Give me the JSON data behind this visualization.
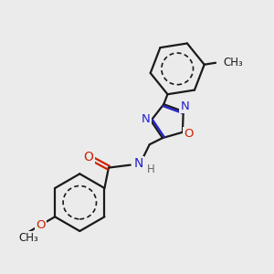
{
  "bg_color": "#ebebeb",
  "bond_color": "#1a1a1a",
  "N_color": "#2222cc",
  "O_color": "#cc2200",
  "H_color": "#666666",
  "lw": 1.6,
  "figsize": [
    3.0,
    3.0
  ],
  "dpi": 100,
  "xlim": [
    0,
    10
  ],
  "ylim": [
    0,
    10
  ]
}
